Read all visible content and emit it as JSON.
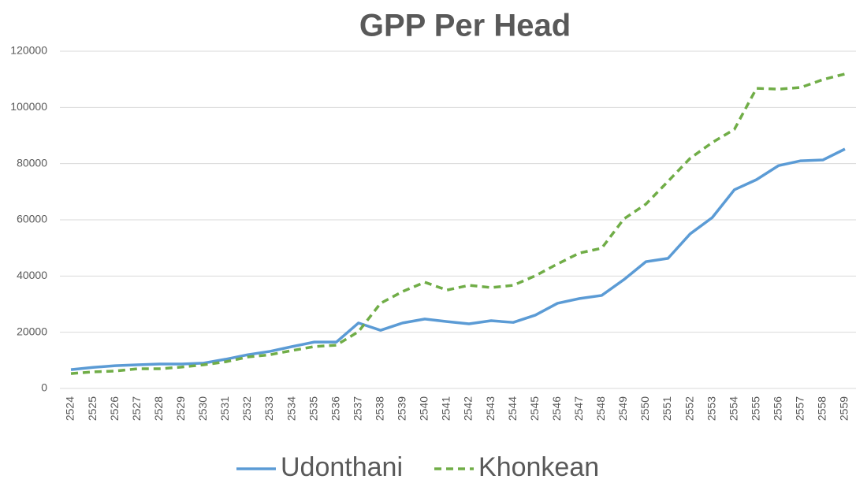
{
  "chart_data": {
    "type": "line",
    "title": "GPP Per Head",
    "categories": [
      "2524",
      "2525",
      "2526",
      "2527",
      "2528",
      "2529",
      "2530",
      "2531",
      "2532",
      "2533",
      "2534",
      "2535",
      "2536",
      "2537",
      "2538",
      "2539",
      "2540",
      "2541",
      "2542",
      "2543",
      "2544",
      "2545",
      "2546",
      "2547",
      "2548",
      "2549",
      "2550",
      "2551",
      "2552",
      "2553",
      "2554",
      "2555",
      "2556",
      "2557",
      "2558",
      "2559"
    ],
    "series": [
      {
        "name": "Udonthani",
        "color": "#5b9bd5",
        "linestyle": "solid",
        "values": [
          6700,
          7500,
          8100,
          8400,
          8700,
          8700,
          9000,
          10400,
          12000,
          13200,
          14900,
          16500,
          16500,
          23300,
          20700,
          23300,
          24700,
          23800,
          23000,
          24100,
          23500,
          26100,
          30300,
          32000,
          33100,
          38700,
          45100,
          46300,
          55000,
          60800,
          70700,
          74300,
          79300,
          81000,
          81300,
          85200
        ]
      },
      {
        "name": "Khonkean",
        "color": "#70ad47",
        "linestyle": "dashed",
        "values": [
          5300,
          5900,
          6200,
          7000,
          7000,
          7600,
          8400,
          9500,
          11200,
          12000,
          13500,
          14900,
          15400,
          20200,
          30300,
          34500,
          37800,
          35000,
          36700,
          35900,
          36700,
          40100,
          44300,
          48200,
          49900,
          60300,
          65600,
          73700,
          81900,
          87500,
          92200,
          106800,
          106500,
          107100,
          109900,
          111900
        ]
      }
    ],
    "ylim": [
      0,
      120000
    ],
    "yticks": [
      0,
      20000,
      40000,
      60000,
      80000,
      100000,
      120000
    ],
    "grid": true,
    "legend": "bottom"
  }
}
